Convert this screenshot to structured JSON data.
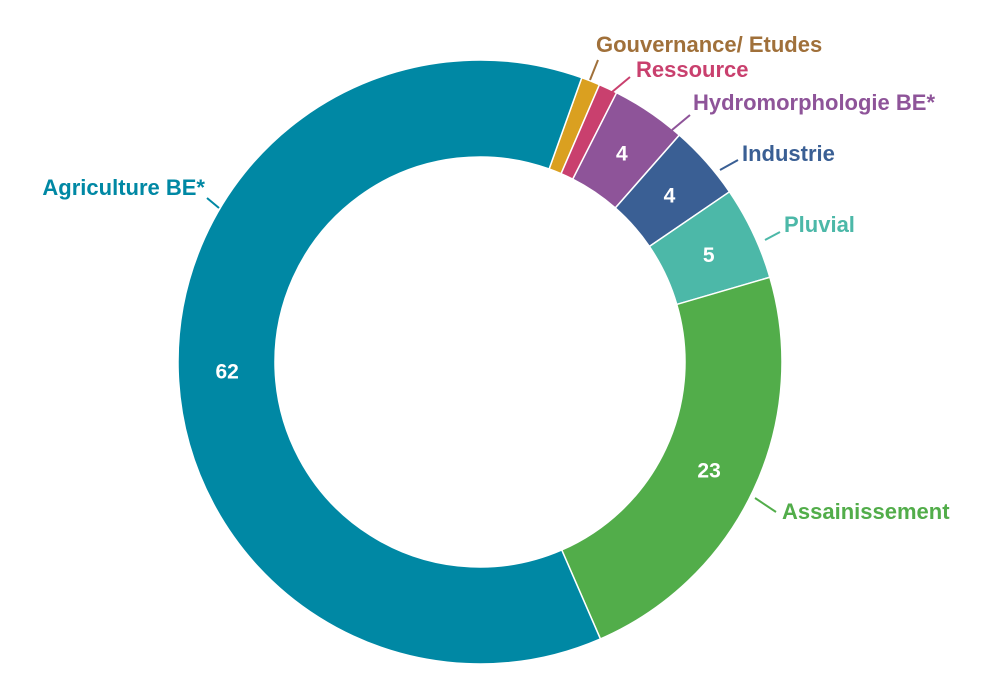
{
  "chart_data": {
    "type": "pie",
    "donut": true,
    "title": "",
    "start_angle_deg": 19.7,
    "direction": "clockwise",
    "slices": [
      {
        "label": "Gouvernance/ Etudes",
        "value": 1,
        "value_label": "",
        "color": "#daa020",
        "label_color": "#a0703a"
      },
      {
        "label": "Ressource",
        "value": 1,
        "value_label": "",
        "color": "#c9406e",
        "label_color": "#c9406e"
      },
      {
        "label": "Hydromorphologie BE*",
        "value": 4,
        "value_label": "4",
        "color": "#8e5499",
        "label_color": "#8e5499"
      },
      {
        "label": "Industrie",
        "value": 4,
        "value_label": "4",
        "color": "#3a5f94",
        "label_color": "#3a5f94"
      },
      {
        "label": "Pluvial",
        "value": 5,
        "value_label": "5",
        "color": "#4cb8a8",
        "label_color": "#4cb8a8"
      },
      {
        "label": "Assainissement",
        "value": 23,
        "value_label": "23",
        "color": "#52ad4a",
        "label_color": "#52ad4a"
      },
      {
        "label": "Agriculture BE*",
        "value": 62,
        "value_label": "62",
        "color": "#0088a4",
        "label_color": "#0088a4"
      }
    ]
  }
}
